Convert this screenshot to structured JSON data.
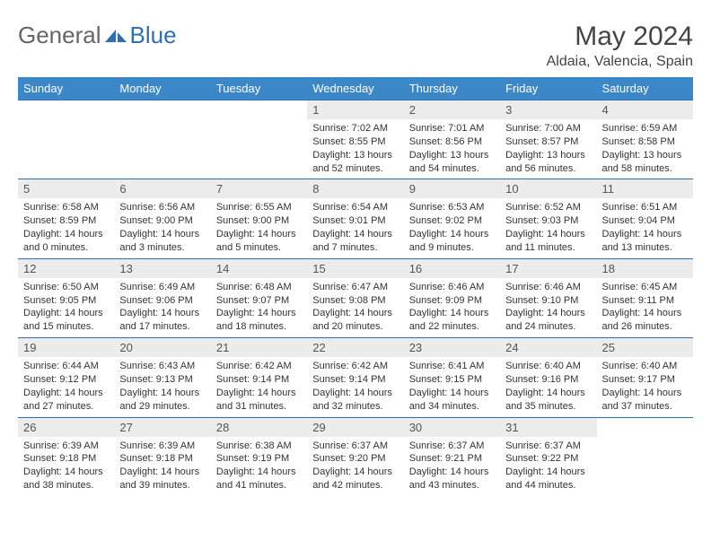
{
  "logo": {
    "text1": "General",
    "text2": "Blue"
  },
  "title": "May 2024",
  "location": "Aldaia, Valencia, Spain",
  "colors": {
    "header_bg": "#3b87c8",
    "border": "#2d6fb5",
    "daynum_bg": "#ececec",
    "logo_blue": "#2d6fb5"
  },
  "weekdays": [
    "Sunday",
    "Monday",
    "Tuesday",
    "Wednesday",
    "Thursday",
    "Friday",
    "Saturday"
  ],
  "weeks": [
    [
      {
        "n": "",
        "lines": []
      },
      {
        "n": "",
        "lines": []
      },
      {
        "n": "",
        "lines": []
      },
      {
        "n": "1",
        "lines": [
          "Sunrise: 7:02 AM",
          "Sunset: 8:55 PM",
          "Daylight: 13 hours and 52 minutes."
        ]
      },
      {
        "n": "2",
        "lines": [
          "Sunrise: 7:01 AM",
          "Sunset: 8:56 PM",
          "Daylight: 13 hours and 54 minutes."
        ]
      },
      {
        "n": "3",
        "lines": [
          "Sunrise: 7:00 AM",
          "Sunset: 8:57 PM",
          "Daylight: 13 hours and 56 minutes."
        ]
      },
      {
        "n": "4",
        "lines": [
          "Sunrise: 6:59 AM",
          "Sunset: 8:58 PM",
          "Daylight: 13 hours and 58 minutes."
        ]
      }
    ],
    [
      {
        "n": "5",
        "lines": [
          "Sunrise: 6:58 AM",
          "Sunset: 8:59 PM",
          "Daylight: 14 hours and 0 minutes."
        ]
      },
      {
        "n": "6",
        "lines": [
          "Sunrise: 6:56 AM",
          "Sunset: 9:00 PM",
          "Daylight: 14 hours and 3 minutes."
        ]
      },
      {
        "n": "7",
        "lines": [
          "Sunrise: 6:55 AM",
          "Sunset: 9:00 PM",
          "Daylight: 14 hours and 5 minutes."
        ]
      },
      {
        "n": "8",
        "lines": [
          "Sunrise: 6:54 AM",
          "Sunset: 9:01 PM",
          "Daylight: 14 hours and 7 minutes."
        ]
      },
      {
        "n": "9",
        "lines": [
          "Sunrise: 6:53 AM",
          "Sunset: 9:02 PM",
          "Daylight: 14 hours and 9 minutes."
        ]
      },
      {
        "n": "10",
        "lines": [
          "Sunrise: 6:52 AM",
          "Sunset: 9:03 PM",
          "Daylight: 14 hours and 11 minutes."
        ]
      },
      {
        "n": "11",
        "lines": [
          "Sunrise: 6:51 AM",
          "Sunset: 9:04 PM",
          "Daylight: 14 hours and 13 minutes."
        ]
      }
    ],
    [
      {
        "n": "12",
        "lines": [
          "Sunrise: 6:50 AM",
          "Sunset: 9:05 PM",
          "Daylight: 14 hours and 15 minutes."
        ]
      },
      {
        "n": "13",
        "lines": [
          "Sunrise: 6:49 AM",
          "Sunset: 9:06 PM",
          "Daylight: 14 hours and 17 minutes."
        ]
      },
      {
        "n": "14",
        "lines": [
          "Sunrise: 6:48 AM",
          "Sunset: 9:07 PM",
          "Daylight: 14 hours and 18 minutes."
        ]
      },
      {
        "n": "15",
        "lines": [
          "Sunrise: 6:47 AM",
          "Sunset: 9:08 PM",
          "Daylight: 14 hours and 20 minutes."
        ]
      },
      {
        "n": "16",
        "lines": [
          "Sunrise: 6:46 AM",
          "Sunset: 9:09 PM",
          "Daylight: 14 hours and 22 minutes."
        ]
      },
      {
        "n": "17",
        "lines": [
          "Sunrise: 6:46 AM",
          "Sunset: 9:10 PM",
          "Daylight: 14 hours and 24 minutes."
        ]
      },
      {
        "n": "18",
        "lines": [
          "Sunrise: 6:45 AM",
          "Sunset: 9:11 PM",
          "Daylight: 14 hours and 26 minutes."
        ]
      }
    ],
    [
      {
        "n": "19",
        "lines": [
          "Sunrise: 6:44 AM",
          "Sunset: 9:12 PM",
          "Daylight: 14 hours and 27 minutes."
        ]
      },
      {
        "n": "20",
        "lines": [
          "Sunrise: 6:43 AM",
          "Sunset: 9:13 PM",
          "Daylight: 14 hours and 29 minutes."
        ]
      },
      {
        "n": "21",
        "lines": [
          "Sunrise: 6:42 AM",
          "Sunset: 9:14 PM",
          "Daylight: 14 hours and 31 minutes."
        ]
      },
      {
        "n": "22",
        "lines": [
          "Sunrise: 6:42 AM",
          "Sunset: 9:14 PM",
          "Daylight: 14 hours and 32 minutes."
        ]
      },
      {
        "n": "23",
        "lines": [
          "Sunrise: 6:41 AM",
          "Sunset: 9:15 PM",
          "Daylight: 14 hours and 34 minutes."
        ]
      },
      {
        "n": "24",
        "lines": [
          "Sunrise: 6:40 AM",
          "Sunset: 9:16 PM",
          "Daylight: 14 hours and 35 minutes."
        ]
      },
      {
        "n": "25",
        "lines": [
          "Sunrise: 6:40 AM",
          "Sunset: 9:17 PM",
          "Daylight: 14 hours and 37 minutes."
        ]
      }
    ],
    [
      {
        "n": "26",
        "lines": [
          "Sunrise: 6:39 AM",
          "Sunset: 9:18 PM",
          "Daylight: 14 hours and 38 minutes."
        ]
      },
      {
        "n": "27",
        "lines": [
          "Sunrise: 6:39 AM",
          "Sunset: 9:18 PM",
          "Daylight: 14 hours and 39 minutes."
        ]
      },
      {
        "n": "28",
        "lines": [
          "Sunrise: 6:38 AM",
          "Sunset: 9:19 PM",
          "Daylight: 14 hours and 41 minutes."
        ]
      },
      {
        "n": "29",
        "lines": [
          "Sunrise: 6:37 AM",
          "Sunset: 9:20 PM",
          "Daylight: 14 hours and 42 minutes."
        ]
      },
      {
        "n": "30",
        "lines": [
          "Sunrise: 6:37 AM",
          "Sunset: 9:21 PM",
          "Daylight: 14 hours and 43 minutes."
        ]
      },
      {
        "n": "31",
        "lines": [
          "Sunrise: 6:37 AM",
          "Sunset: 9:22 PM",
          "Daylight: 14 hours and 44 minutes."
        ]
      },
      {
        "n": "",
        "lines": []
      }
    ]
  ]
}
